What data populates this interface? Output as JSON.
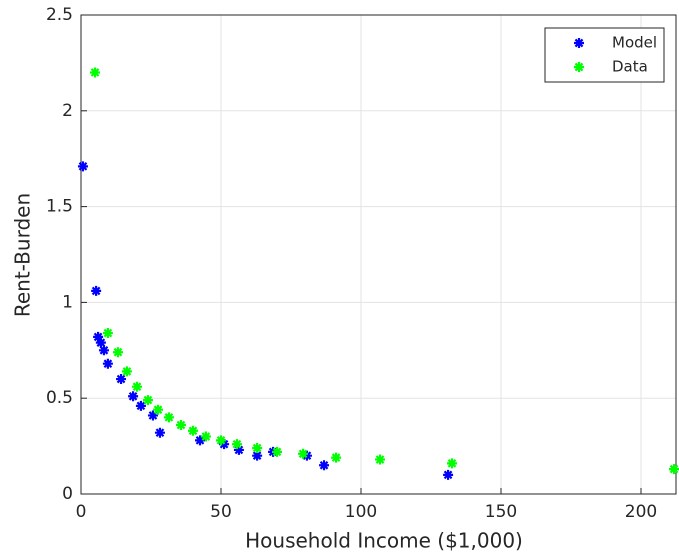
{
  "chart_data": {
    "type": "scatter",
    "x_label": "Household Income ($1,000)",
    "y_label": "Rent-Burden",
    "xlim": [
      0,
      212.5
    ],
    "ylim": [
      0,
      2.5
    ],
    "xticks": [
      0,
      50,
      100,
      150,
      200
    ],
    "yticks": [
      0,
      0.5,
      1,
      1.5,
      2,
      2.5
    ],
    "grid": true,
    "legend_position": "upper-right",
    "series": [
      {
        "name": "Model",
        "color": "#0000ff",
        "x": [
          0.7,
          5.4,
          6.1,
          7.1,
          8.2,
          9.6,
          14.3,
          18.6,
          21.4,
          25.7,
          28.2,
          42.5,
          51.1,
          56.4,
          62.9,
          68.6,
          80.7,
          86.8,
          131.1
        ],
        "values": [
          1.71,
          1.06,
          0.82,
          0.79,
          0.75,
          0.68,
          0.6,
          0.51,
          0.46,
          0.41,
          0.32,
          0.28,
          0.26,
          0.23,
          0.2,
          0.22,
          0.2,
          0.15,
          0.1
        ]
      },
      {
        "name": "Data",
        "color": "#00ff00",
        "x": [
          5.0,
          9.6,
          13.2,
          16.4,
          20.0,
          23.9,
          27.5,
          31.4,
          35.7,
          40.0,
          44.6,
          50.0,
          55.7,
          62.9,
          70.0,
          79.3,
          91.1,
          106.8,
          132.5,
          211.8
        ],
        "values": [
          2.2,
          0.84,
          0.74,
          0.64,
          0.56,
          0.49,
          0.44,
          0.4,
          0.36,
          0.33,
          0.3,
          0.28,
          0.26,
          0.24,
          0.22,
          0.21,
          0.19,
          0.18,
          0.16,
          0.13
        ]
      }
    ]
  }
}
